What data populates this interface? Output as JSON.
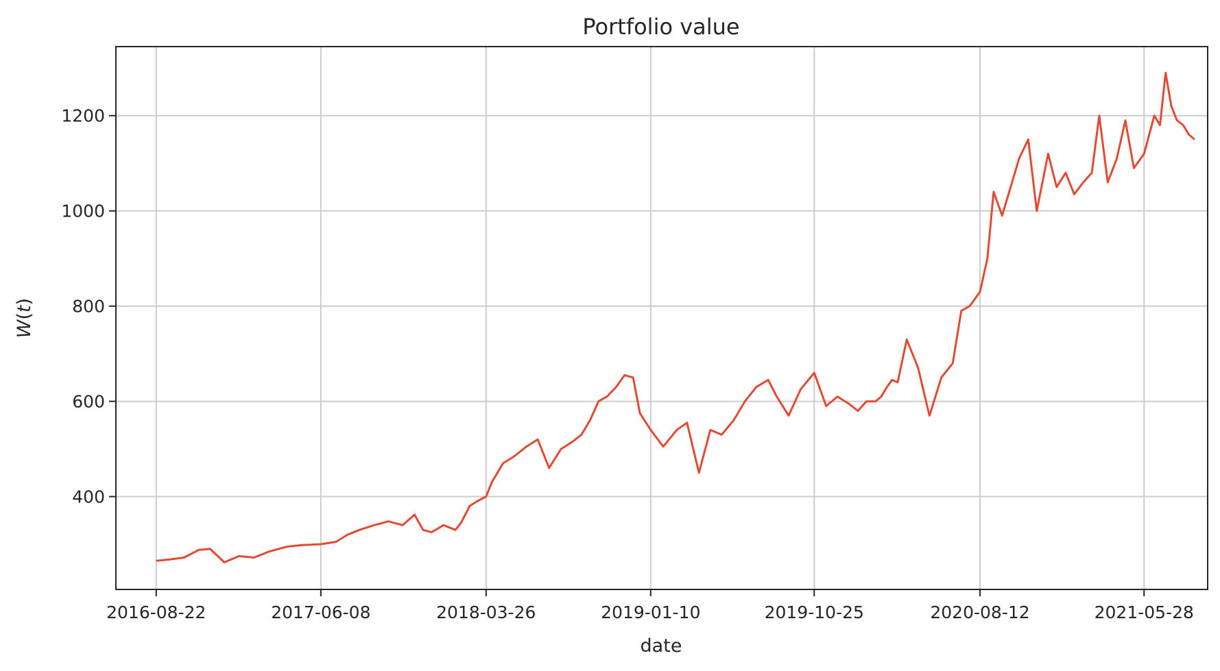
{
  "chart_data": {
    "type": "line",
    "title": "Portfolio value",
    "xlabel": "date",
    "ylabel": "W(t)",
    "grid": true,
    "legend": "none",
    "color": "#e24a33",
    "xlim": [
      "2016-06-12",
      "2021-09-17"
    ],
    "ylim": [
      205,
      1345
    ],
    "xticks": [
      "2016-08-22",
      "2017-06-08",
      "2018-03-26",
      "2019-01-10",
      "2019-10-25",
      "2020-08-12",
      "2021-05-28"
    ],
    "yticks": [
      400,
      600,
      800,
      1000,
      1200
    ],
    "series": [
      {
        "x": [
          "2016-08-22",
          "2016-09-15",
          "2016-10-10",
          "2016-11-05",
          "2016-11-25",
          "2016-12-20",
          "2017-01-15",
          "2017-02-10",
          "2017-03-10",
          "2017-04-10",
          "2017-05-05",
          "2017-06-08",
          "2017-07-05",
          "2017-07-25",
          "2017-08-15",
          "2017-09-10",
          "2017-10-05",
          "2017-10-30",
          "2017-11-20",
          "2017-12-05",
          "2017-12-20",
          "2018-01-10",
          "2018-01-31",
          "2018-02-10",
          "2018-02-25",
          "2018-03-10",
          "2018-03-26",
          "2018-04-05",
          "2018-04-25",
          "2018-05-15",
          "2018-06-05",
          "2018-06-25",
          "2018-07-15",
          "2018-08-05",
          "2018-08-25",
          "2018-09-10",
          "2018-09-25",
          "2018-10-10",
          "2018-10-25",
          "2018-11-10",
          "2018-11-25",
          "2018-12-10",
          "2018-12-22",
          "2019-01-10",
          "2019-02-01",
          "2019-02-25",
          "2019-03-15",
          "2019-04-05",
          "2019-04-25",
          "2019-05-15",
          "2019-06-05",
          "2019-06-25",
          "2019-07-15",
          "2019-08-05",
          "2019-08-20",
          "2019-09-10",
          "2019-10-01",
          "2019-10-25",
          "2019-11-15",
          "2019-12-05",
          "2019-12-25",
          "2020-01-10",
          "2020-01-25",
          "2020-02-10",
          "2020-02-20",
          "2020-03-01",
          "2020-03-10",
          "2020-03-20",
          "2020-04-05",
          "2020-04-25",
          "2020-05-15",
          "2020-06-05",
          "2020-06-25",
          "2020-07-10",
          "2020-07-25",
          "2020-08-12",
          "2020-08-25",
          "2020-09-05",
          "2020-09-20",
          "2020-10-05",
          "2020-10-20",
          "2020-11-05",
          "2020-11-20",
          "2020-12-10",
          "2020-12-25",
          "2021-01-10",
          "2021-01-25",
          "2021-02-10",
          "2021-02-25",
          "2021-03-10",
          "2021-03-25",
          "2021-04-10",
          "2021-04-25",
          "2021-05-10",
          "2021-05-28",
          "2021-06-15",
          "2021-06-25",
          "2021-07-05",
          "2021-07-15",
          "2021-07-25",
          "2021-08-05",
          "2021-08-15",
          "2021-08-25"
        ],
        "y": [
          265,
          268,
          272,
          288,
          290,
          262,
          275,
          272,
          285,
          295,
          298,
          300,
          305,
          320,
          330,
          340,
          348,
          340,
          362,
          330,
          325,
          340,
          330,
          345,
          380,
          390,
          400,
          430,
          470,
          485,
          505,
          520,
          460,
          500,
          515,
          530,
          560,
          600,
          610,
          630,
          655,
          650,
          575,
          540,
          505,
          540,
          555,
          450,
          540,
          530,
          560,
          600,
          630,
          645,
          610,
          570,
          625,
          660,
          590,
          610,
          595,
          580,
          600,
          600,
          610,
          630,
          645,
          640,
          730,
          670,
          570,
          650,
          680,
          790,
          800,
          830,
          900,
          1040,
          990,
          1050,
          1110,
          1150,
          1000,
          1120,
          1050,
          1080,
          1035,
          1060,
          1080,
          1200,
          1060,
          1110,
          1190,
          1090,
          1120,
          1200,
          1180,
          1290,
          1220,
          1190,
          1180,
          1160,
          1150
        ]
      }
    ]
  }
}
